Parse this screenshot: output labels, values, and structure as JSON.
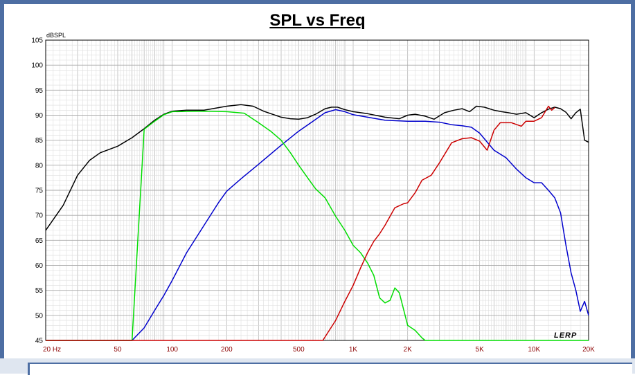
{
  "chart_data": {
    "type": "line",
    "title": "SPL vs Freq",
    "ylabel": "dBSPL",
    "xscale": "log",
    "xlim": [
      20,
      20000
    ],
    "ylim": [
      45,
      105
    ],
    "grid": true,
    "y_ticks": [
      "105",
      "100",
      "95",
      "90",
      "85",
      "80",
      "75",
      "70",
      "65",
      "60",
      "55",
      "50",
      "45"
    ],
    "x_ticks": [
      {
        "value": 20,
        "label": "20  Hz"
      },
      {
        "value": 50,
        "label": "50"
      },
      {
        "value": 100,
        "label": "100"
      },
      {
        "value": 200,
        "label": "200"
      },
      {
        "value": 500,
        "label": "500"
      },
      {
        "value": 1000,
        "label": "1K"
      },
      {
        "value": 2000,
        "label": "2K"
      },
      {
        "value": 5000,
        "label": "5K"
      },
      {
        "value": 10000,
        "label": "10K"
      },
      {
        "value": 20000,
        "label": "20K"
      }
    ],
    "watermark": "LERP",
    "series": [
      {
        "color": "#000000",
        "points": [
          [
            20,
            67
          ],
          [
            25,
            72
          ],
          [
            30,
            78
          ],
          [
            35,
            81
          ],
          [
            40,
            82.5
          ],
          [
            50,
            83.8
          ],
          [
            60,
            85.5
          ],
          [
            70,
            87.3
          ],
          [
            80,
            89
          ],
          [
            90,
            90.2
          ],
          [
            100,
            90.8
          ],
          [
            120,
            91
          ],
          [
            150,
            91
          ],
          [
            180,
            91.5
          ],
          [
            200,
            91.8
          ],
          [
            240,
            92.1
          ],
          [
            280,
            91.8
          ],
          [
            320,
            90.8
          ],
          [
            400,
            89.6
          ],
          [
            450,
            89.3
          ],
          [
            500,
            89.2
          ],
          [
            560,
            89.5
          ],
          [
            620,
            90.2
          ],
          [
            700,
            91.3
          ],
          [
            760,
            91.6
          ],
          [
            820,
            91.6
          ],
          [
            900,
            91.1
          ],
          [
            1000,
            90.7
          ],
          [
            1200,
            90.3
          ],
          [
            1500,
            89.6
          ],
          [
            1800,
            89.3
          ],
          [
            2000,
            90
          ],
          [
            2200,
            90.2
          ],
          [
            2500,
            89.8
          ],
          [
            2800,
            89.2
          ],
          [
            3200,
            90.5
          ],
          [
            3600,
            91
          ],
          [
            4000,
            91.3
          ],
          [
            4400,
            90.7
          ],
          [
            4800,
            91.8
          ],
          [
            5300,
            91.6
          ],
          [
            6000,
            91
          ],
          [
            6600,
            90.7
          ],
          [
            7200,
            90.5
          ],
          [
            8000,
            90.2
          ],
          [
            9000,
            90.5
          ],
          [
            10000,
            89.5
          ],
          [
            11000,
            90.5
          ],
          [
            12000,
            91.2
          ],
          [
            13000,
            91.6
          ],
          [
            14000,
            91.3
          ],
          [
            15000,
            90.6
          ],
          [
            16000,
            89.3
          ],
          [
            17000,
            90.5
          ],
          [
            18000,
            91.2
          ],
          [
            19000,
            85
          ],
          [
            20000,
            84.6
          ]
        ]
      },
      {
        "color": "#0000cc",
        "points": [
          [
            20,
            45
          ],
          [
            60,
            45
          ],
          [
            70,
            47.5
          ],
          [
            80,
            51
          ],
          [
            90,
            54
          ],
          [
            100,
            57
          ],
          [
            120,
            62.5
          ],
          [
            150,
            68
          ],
          [
            180,
            72.5
          ],
          [
            200,
            74.8
          ],
          [
            240,
            77.3
          ],
          [
            300,
            80.2
          ],
          [
            400,
            84
          ],
          [
            500,
            86.8
          ],
          [
            600,
            88.8
          ],
          [
            700,
            90.5
          ],
          [
            800,
            91.1
          ],
          [
            900,
            90.7
          ],
          [
            1000,
            90.1
          ],
          [
            1200,
            89.6
          ],
          [
            1500,
            89
          ],
          [
            2000,
            88.8
          ],
          [
            2500,
            88.8
          ],
          [
            3000,
            88.6
          ],
          [
            3500,
            88.1
          ],
          [
            4000,
            87.9
          ],
          [
            4500,
            87.6
          ],
          [
            5000,
            86.4
          ],
          [
            6000,
            83
          ],
          [
            7000,
            81.5
          ],
          [
            8000,
            79.2
          ],
          [
            9000,
            77.5
          ],
          [
            10000,
            76.5
          ],
          [
            11000,
            76.5
          ],
          [
            12000,
            75
          ],
          [
            13000,
            73.5
          ],
          [
            14000,
            70.5
          ],
          [
            15000,
            64
          ],
          [
            16000,
            58.5
          ],
          [
            17000,
            55
          ],
          [
            18000,
            50.8
          ],
          [
            19000,
            52.8
          ],
          [
            20000,
            50
          ]
        ]
      },
      {
        "color": "#00dd00",
        "points": [
          [
            20,
            45
          ],
          [
            60,
            45
          ],
          [
            70,
            87.2
          ],
          [
            80,
            88.8
          ],
          [
            90,
            90.1
          ],
          [
            100,
            90.7
          ],
          [
            150,
            90.8
          ],
          [
            200,
            90.7
          ],
          [
            250,
            90.4
          ],
          [
            300,
            88.5
          ],
          [
            350,
            86.8
          ],
          [
            400,
            85
          ],
          [
            450,
            82.5
          ],
          [
            500,
            80
          ],
          [
            560,
            77.5
          ],
          [
            620,
            75.3
          ],
          [
            700,
            73.5
          ],
          [
            800,
            69.8
          ],
          [
            900,
            67
          ],
          [
            1000,
            64
          ],
          [
            1100,
            62.5
          ],
          [
            1200,
            60.5
          ],
          [
            1300,
            58
          ],
          [
            1400,
            53.5
          ],
          [
            1500,
            52.5
          ],
          [
            1600,
            53
          ],
          [
            1700,
            55.5
          ],
          [
            1800,
            54.5
          ],
          [
            1900,
            51.2
          ],
          [
            2000,
            48
          ],
          [
            2200,
            47
          ],
          [
            2400,
            45.5
          ],
          [
            2500,
            45
          ],
          [
            20000,
            45
          ]
        ]
      },
      {
        "color": "#cc0000",
        "points": [
          [
            20,
            45
          ],
          [
            680,
            45
          ],
          [
            800,
            49
          ],
          [
            900,
            52.8
          ],
          [
            1000,
            56
          ],
          [
            1100,
            59.5
          ],
          [
            1200,
            62.5
          ],
          [
            1300,
            64.8
          ],
          [
            1400,
            66.3
          ],
          [
            1500,
            68
          ],
          [
            1700,
            71.5
          ],
          [
            1900,
            72.3
          ],
          [
            2000,
            72.5
          ],
          [
            2200,
            74.5
          ],
          [
            2400,
            77
          ],
          [
            2700,
            78
          ],
          [
            3000,
            80.5
          ],
          [
            3500,
            84.5
          ],
          [
            4000,
            85.3
          ],
          [
            4500,
            85.5
          ],
          [
            5000,
            84.8
          ],
          [
            5500,
            83
          ],
          [
            6000,
            87
          ],
          [
            6500,
            88.5
          ],
          [
            7500,
            88.5
          ],
          [
            8500,
            87.8
          ],
          [
            9000,
            88.8
          ],
          [
            10000,
            88.8
          ],
          [
            11000,
            89.5
          ],
          [
            12000,
            91.8
          ],
          [
            12500,
            91
          ],
          [
            13000,
            91.5
          ]
        ]
      }
    ]
  }
}
